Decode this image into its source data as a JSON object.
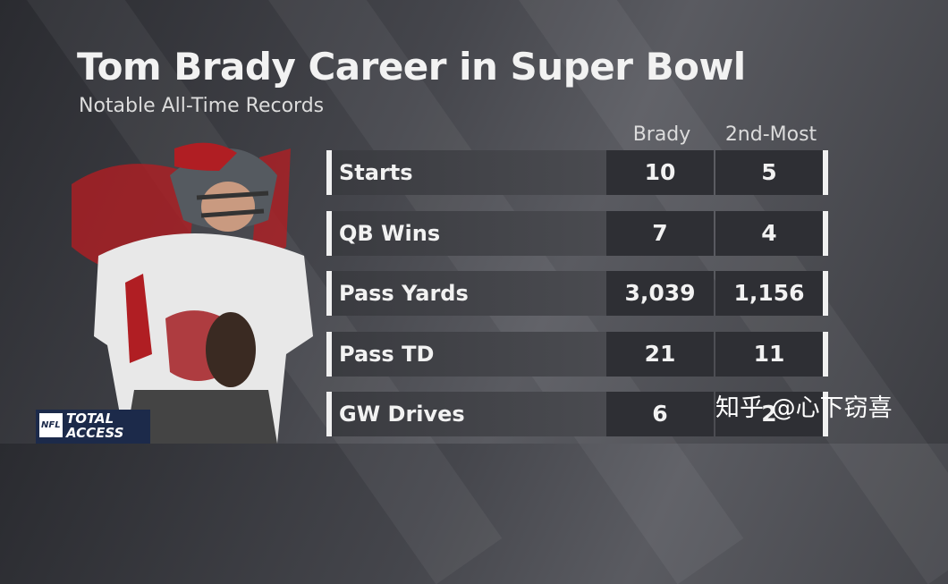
{
  "header": {
    "title": "Tom Brady Career in Super Bowl",
    "subtitle": "Notable All-Time Records"
  },
  "table": {
    "columns": [
      "Brady",
      "2nd-Most"
    ],
    "rows": [
      [
        "Starts",
        "10",
        "5"
      ],
      [
        "QB Wins",
        "7",
        "4"
      ],
      [
        "Pass Yards",
        "3,039",
        "1,156"
      ],
      [
        "Pass TD",
        "21",
        "11"
      ],
      [
        "GW Drives",
        "6",
        "2"
      ]
    ]
  },
  "logo": {
    "league": "NFL",
    "show": "TOTAL ACCESS"
  },
  "watermark": "知乎 @心下窃喜"
}
